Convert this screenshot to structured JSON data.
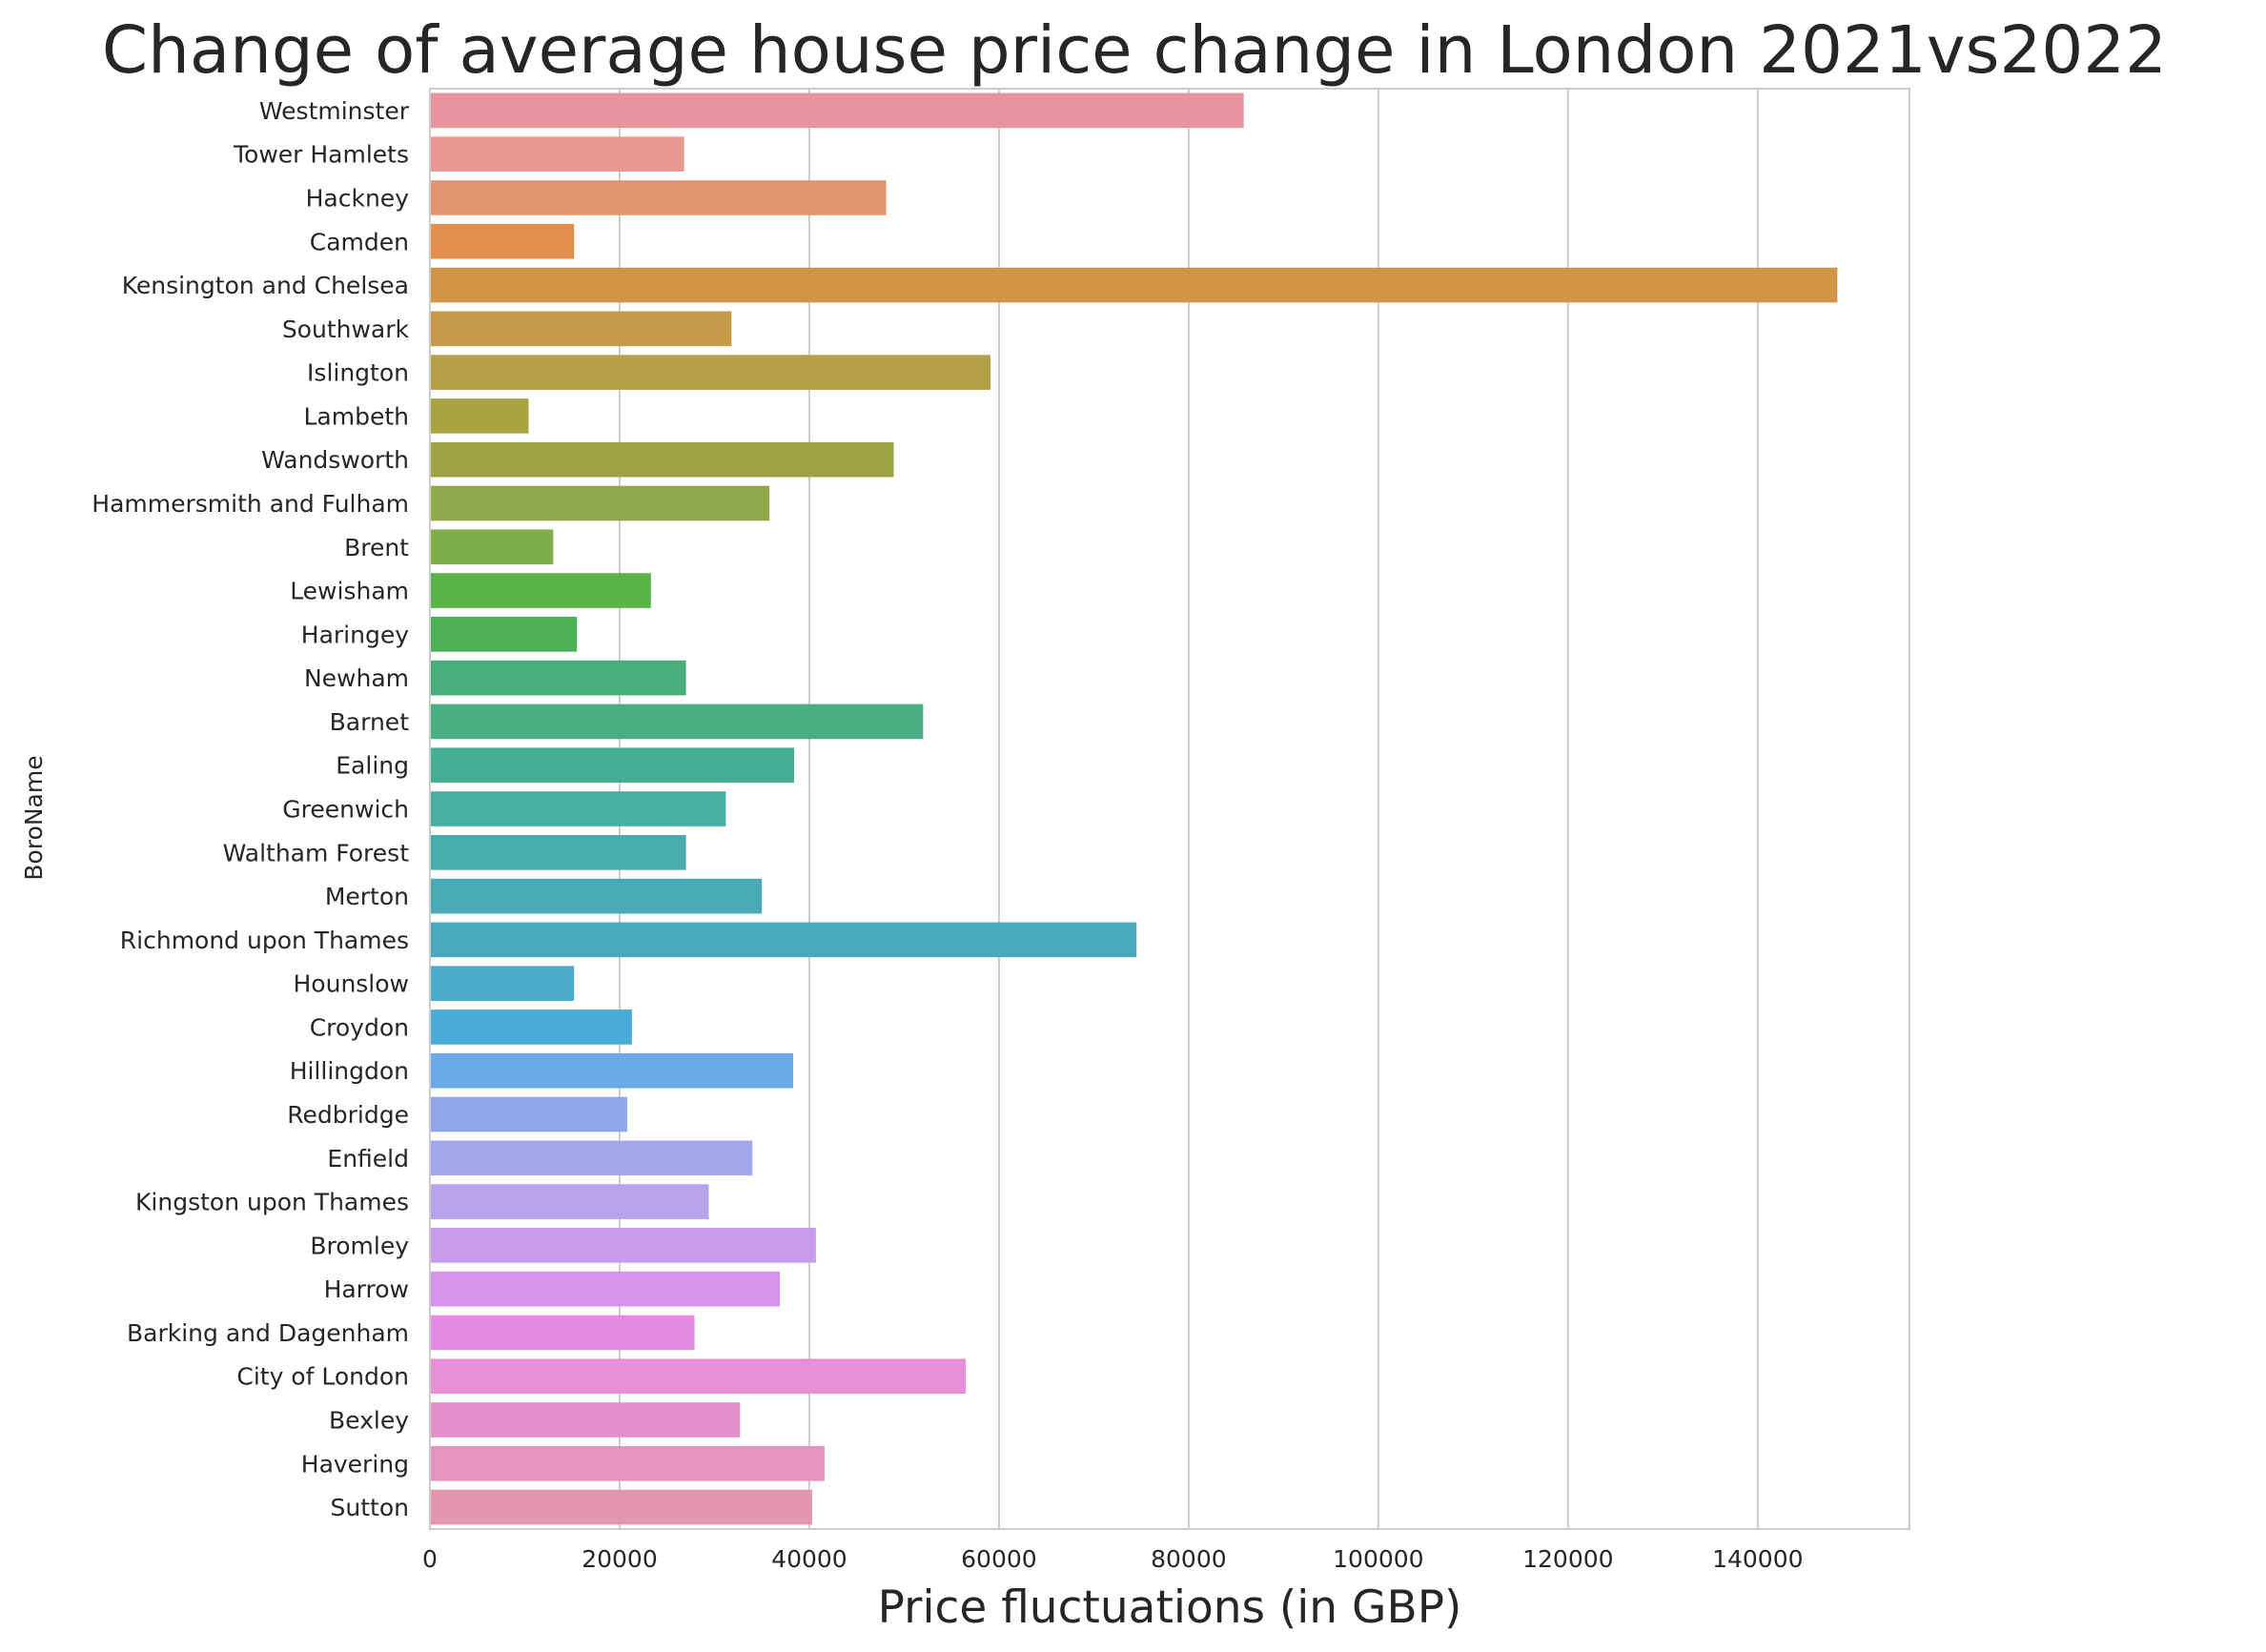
{
  "chart_data": {
    "type": "bar",
    "orientation": "horizontal",
    "title": "Change of average house price change in London 2021vs2022",
    "xlabel": "Price fluctuations (in GBP)",
    "ylabel": "BoroName",
    "xlim": [
      0,
      156000
    ],
    "xticks": [
      0,
      20000,
      40000,
      60000,
      80000,
      100000,
      120000,
      140000
    ],
    "grid": "vertical",
    "legend": "none",
    "categories": [
      "Westminster",
      "Tower Hamlets",
      "Hackney",
      "Camden",
      "Kensington and Chelsea",
      "Southwark",
      "Islington",
      "Lambeth",
      "Wandsworth",
      "Hammersmith and Fulham",
      "Brent",
      "Lewisham",
      "Haringey",
      "Newham",
      "Barnet",
      "Ealing",
      "Greenwich",
      "Waltham Forest",
      "Merton",
      "Richmond upon Thames",
      "Hounslow",
      "Croydon",
      "Hillingdon",
      "Redbridge",
      "Enfield",
      "Kingston upon Thames",
      "Bromley",
      "Harrow",
      "Barking and Dagenham",
      "City of London",
      "Bexley",
      "Havering",
      "Sutton"
    ],
    "values": [
      85800,
      26800,
      48100,
      15200,
      148400,
      31800,
      59100,
      10400,
      48900,
      35800,
      13000,
      23300,
      15500,
      27000,
      52000,
      38400,
      31200,
      27000,
      35000,
      74500,
      15200,
      21300,
      38300,
      20800,
      34000,
      29400,
      40700,
      36900,
      27900,
      56500,
      32700,
      41600,
      40300
    ],
    "colors": [
      "#e8949e",
      "#e89890",
      "#e59471",
      "#e0904c",
      "#d19447",
      "#c69a48",
      "#b5a047",
      "#a7a342",
      "#9ea345",
      "#90a84a",
      "#7fae4a",
      "#5ab347",
      "#4aaf55",
      "#48ad78",
      "#4aae85",
      "#47ad93",
      "#4aada1",
      "#49adab",
      "#49aab5",
      "#4aa9be",
      "#4babcb",
      "#4aabd8",
      "#6aaae8",
      "#90a8ea",
      "#a4a6ec",
      "#b7a3ea",
      "#c69ceb",
      "#d495e8",
      "#e68be5",
      "#e590d8",
      "#e590cb",
      "#e494bf",
      "#e595b0"
    ]
  }
}
